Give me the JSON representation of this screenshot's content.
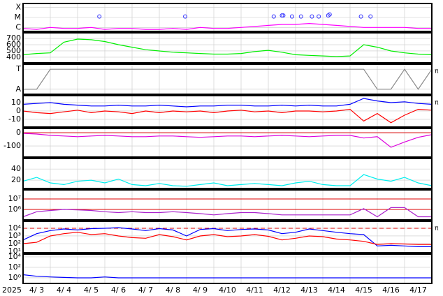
{
  "time_axis": {
    "year": "2025",
    "xlim": [
      0,
      15
    ],
    "ticks": [
      {
        "value": 0.5,
        "label": "4/ 3"
      },
      {
        "value": 1.5,
        "label": "4/ 4"
      },
      {
        "value": 2.5,
        "label": "4/ 5"
      },
      {
        "value": 3.5,
        "label": "4/ 6"
      },
      {
        "value": 4.5,
        "label": "4/ 7"
      },
      {
        "value": 5.5,
        "label": "4/ 8"
      },
      {
        "value": 6.5,
        "label": "4/ 9"
      },
      {
        "value": 7.5,
        "label": "4/10"
      },
      {
        "value": 8.5,
        "label": "4/11"
      },
      {
        "value": 9.5,
        "label": "4/12"
      },
      {
        "value": 10.5,
        "label": "4/13"
      },
      {
        "value": 11.5,
        "label": "4/14"
      },
      {
        "value": 12.5,
        "label": "4/15"
      },
      {
        "value": 13.5,
        "label": "4/16"
      },
      {
        "value": 14.5,
        "label": "4/17"
      }
    ],
    "gridlines": [
      1,
      2,
      3,
      4,
      5,
      6,
      7,
      8,
      9,
      10,
      11,
      12,
      13,
      14
    ]
  },
  "chart_data": [
    {
      "type": "line",
      "ylim": [
        -6.4,
        -3.6
      ],
      "yticks": [
        {
          "value": -4,
          "label": "X"
        },
        {
          "value": -5,
          "label": "M"
        },
        {
          "value": -6,
          "label": "C"
        }
      ],
      "x": [
        0,
        0.5,
        1,
        1.5,
        2,
        2.5,
        3,
        3.5,
        4,
        4.5,
        5,
        5.5,
        6,
        6.5,
        7,
        7.5,
        8,
        8.5,
        9,
        9.5,
        10,
        10.5,
        11,
        11.5,
        12,
        12.5,
        13,
        13.5,
        14,
        14.5,
        15
      ],
      "series": [
        {
          "color": "#ff00ff",
          "values": [
            -6.1,
            -6.2,
            -6.0,
            -6.1,
            -6.1,
            -6.0,
            -6.2,
            -6.1,
            -6.1,
            -6.2,
            -6.2,
            -6.1,
            -6.2,
            -6.0,
            -6.1,
            -6.1,
            -6.0,
            -5.9,
            -5.8,
            -5.7,
            -5.7,
            -5.6,
            -5.7,
            -5.8,
            -5.9,
            -6.0,
            -6.0,
            -6.0,
            -6.0,
            -6.1,
            -6.1
          ]
        }
      ],
      "events": {
        "color": "#3030ff",
        "x": [
          2.8,
          5.95,
          9.2,
          9.5,
          9.55,
          9.87,
          10.2,
          10.6,
          10.85,
          11.2,
          11.25,
          12.4,
          12.75
        ],
        "values": [
          -4.9,
          -4.9,
          -4.9,
          -4.8,
          -4.8,
          -4.9,
          -4.9,
          -4.9,
          -4.9,
          -4.8,
          -4.7,
          -4.9,
          -4.9
        ]
      }
    },
    {
      "type": "line",
      "ylim": [
        310,
        790
      ],
      "yticks": [
        400,
        500,
        600,
        700
      ],
      "x": [
        0,
        0.5,
        1,
        1.5,
        2,
        2.5,
        3,
        3.5,
        4,
        4.5,
        5,
        5.5,
        6,
        6.5,
        7,
        7.5,
        8,
        8.5,
        9,
        9.5,
        10,
        10.5,
        11,
        11.5,
        12,
        12.5,
        13,
        13.5,
        14,
        14.5,
        15
      ],
      "series": [
        {
          "color": "#00ee00",
          "values": [
            440,
            460,
            470,
            640,
            690,
            680,
            650,
            600,
            560,
            520,
            500,
            480,
            470,
            460,
            450,
            450,
            460,
            490,
            510,
            480,
            440,
            430,
            420,
            410,
            420,
            600,
            560,
            500,
            470,
            450,
            440
          ]
        }
      ]
    },
    {
      "type": "line",
      "ylim": [
        -1.5,
        1.5
      ],
      "yticks": [
        {
          "value": 1,
          "label": "T"
        },
        {
          "value": -1,
          "label": "A"
        }
      ],
      "side_label": "π",
      "x": [
        0,
        0.5,
        1,
        1.5,
        2,
        2.5,
        3,
        3.5,
        4,
        4.5,
        5,
        5.5,
        6,
        6.5,
        7,
        7.5,
        8,
        8.5,
        9,
        9.5,
        10,
        10.5,
        11,
        11.5,
        12,
        12.5,
        13,
        13.5,
        14,
        14.5,
        15
      ],
      "series": [
        {
          "color": "#888888",
          "values": [
            -1,
            -1,
            1,
            1,
            1,
            1,
            1,
            1,
            1,
            1,
            1,
            1,
            1,
            1,
            1,
            1,
            1,
            1,
            1,
            1,
            1,
            1,
            1,
            1,
            1,
            1,
            -1,
            -1,
            1,
            -1,
            1
          ]
        }
      ]
    },
    {
      "type": "line",
      "ylim": [
        -19.2,
        18.3
      ],
      "yticks": [
        10,
        0,
        -10
      ],
      "side_label": "π",
      "x": [
        0,
        0.5,
        1,
        1.5,
        2,
        2.5,
        3,
        3.5,
        4,
        4.5,
        5,
        5.5,
        6,
        6.5,
        7,
        7.5,
        8,
        8.5,
        9,
        9.5,
        10,
        10.5,
        11,
        11.5,
        12,
        12.5,
        13,
        13.5,
        14,
        14.5,
        15
      ],
      "series": [
        {
          "color": "#0000ff",
          "values": [
            8,
            9,
            10,
            8,
            7,
            6,
            6,
            7,
            6,
            6,
            7,
            6,
            5,
            6,
            6,
            7,
            7,
            6,
            6,
            7,
            6,
            7,
            6,
            6,
            8,
            15,
            12,
            10,
            11,
            9,
            8
          ]
        },
        {
          "color": "#ff0000",
          "values": [
            0,
            -2,
            -3,
            -1,
            1,
            -2,
            0,
            -1,
            -3,
            0,
            -2,
            0,
            -1,
            0,
            -2,
            0,
            1,
            -1,
            0,
            -2,
            0,
            0,
            -1,
            0,
            2,
            -12,
            -3,
            -14,
            -5,
            2,
            1
          ]
        }
      ]
    },
    {
      "type": "line",
      "ylim": [
        -184,
        32
      ],
      "yticks": [
        0,
        -100
      ],
      "thresholds": [
        0
      ],
      "x": [
        0,
        0.5,
        1,
        1.5,
        2,
        2.5,
        3,
        3.5,
        4,
        4.5,
        5,
        5.5,
        6,
        6.5,
        7,
        7.5,
        8,
        8.5,
        9,
        9.5,
        10,
        10.5,
        11,
        11.5,
        12,
        12.5,
        13,
        13.5,
        14,
        14.5,
        15
      ],
      "series": [
        {
          "color": "#dd00dd",
          "values": [
            -5,
            -10,
            -20,
            -25,
            -30,
            -25,
            -20,
            -25,
            -30,
            -30,
            -25,
            -25,
            -30,
            -35,
            -30,
            -25,
            -25,
            -30,
            -25,
            -20,
            -25,
            -30,
            -25,
            -20,
            -20,
            -40,
            -30,
            -110,
            -70,
            -35,
            -15
          ]
        }
      ]
    },
    {
      "type": "line",
      "ylim": [
        5,
        59
      ],
      "yticks": [
        40,
        20
      ],
      "x": [
        0,
        0.5,
        1,
        1.5,
        2,
        2.5,
        3,
        3.5,
        4,
        4.5,
        5,
        5.5,
        6,
        6.5,
        7,
        7.5,
        8,
        8.5,
        9,
        9.5,
        10,
        10.5,
        11,
        11.5,
        12,
        12.5,
        13,
        13.5,
        14,
        14.5,
        15
      ],
      "series": [
        {
          "color": "#00eeee",
          "values": [
            18,
            25,
            15,
            12,
            18,
            20,
            15,
            22,
            12,
            10,
            14,
            10,
            9,
            12,
            15,
            10,
            12,
            14,
            12,
            10,
            15,
            18,
            12,
            10,
            10,
            30,
            22,
            18,
            25,
            15,
            10
          ]
        }
      ]
    },
    {
      "type": "line",
      "log_scale": true,
      "ylim": [
        100000,
        74000000
      ],
      "yticks": [
        {
          "value": 10000000,
          "label": "10⁷"
        },
        {
          "value": 1000000,
          "label": "10⁶"
        }
      ],
      "thresholds": [
        10000000,
        1000000
      ],
      "x": [
        0,
        0.5,
        1,
        1.5,
        2,
        2.5,
        3,
        3.5,
        4,
        4.5,
        5,
        5.5,
        6,
        6.5,
        7,
        7.5,
        8,
        8.5,
        9,
        9.5,
        10,
        10.5,
        11,
        11.5,
        12,
        12.5,
        13,
        13.5,
        14,
        14.5,
        15
      ],
      "series": [
        {
          "color": "#aa22cc",
          "values": [
            200000,
            600000,
            800000,
            1000000,
            900000,
            800000,
            600000,
            500000,
            600000,
            500000,
            500000,
            600000,
            500000,
            400000,
            300000,
            400000,
            500000,
            500000,
            400000,
            300000,
            300000,
            300000,
            300000,
            300000,
            300000,
            1200000,
            200000,
            1500000,
            1500000,
            200000,
            200000
          ]
        }
      ]
    },
    {
      "type": "line",
      "log_scale": true,
      "ylim": [
        6.6,
        80000
      ],
      "yticks": [
        {
          "value": 10000,
          "label": "10⁴"
        },
        {
          "value": 1000,
          "label": "10³"
        },
        {
          "value": 100,
          "label": "10²"
        },
        {
          "value": 10,
          "label": "10¹"
        }
      ],
      "dashed_thresholds": [
        10000
      ],
      "side_label": "π",
      "x": [
        0,
        0.5,
        1,
        1.5,
        2,
        2.5,
        3,
        3.5,
        4,
        4.5,
        5,
        5.5,
        6,
        6.5,
        7,
        7.5,
        8,
        8.5,
        9,
        9.5,
        10,
        10.5,
        11,
        11.5,
        12,
        12.5,
        13,
        13.5,
        14,
        14.5,
        15
      ],
      "series": [
        {
          "color": "#0000ff",
          "values": [
            300,
            2000,
            5000,
            8000,
            6000,
            9000,
            10000,
            12000,
            8000,
            5000,
            9000,
            6000,
            1000,
            7000,
            9000,
            5000,
            7000,
            8000,
            6000,
            2000,
            3000,
            8000,
            5000,
            3000,
            2000,
            1500,
            50,
            60,
            50,
            40,
            40
          ]
        },
        {
          "color": "#ff0000",
          "values": [
            100,
            150,
            1000,
            2000,
            3000,
            1500,
            2000,
            1000,
            600,
            500,
            1500,
            800,
            300,
            1000,
            1500,
            800,
            1000,
            1500,
            900,
            300,
            500,
            1000,
            800,
            400,
            300,
            200,
            80,
            100,
            90,
            80,
            80
          ]
        }
      ]
    },
    {
      "type": "line",
      "log_scale": true,
      "ylim": [
        0.085,
        34000
      ],
      "yticks": [
        {
          "value": 10000,
          "label": "10⁴"
        },
        {
          "value": 100,
          "label": "10²"
        },
        {
          "value": 1,
          "label": "10⁰"
        }
      ],
      "x": [
        0,
        0.5,
        1,
        1.5,
        2,
        2.5,
        3,
        3.5,
        4,
        4.5,
        5,
        5.5,
        6,
        6.5,
        7,
        7.5,
        8,
        8.5,
        9,
        9.5,
        10,
        10.5,
        11,
        11.5,
        12,
        12.5,
        13,
        13.5,
        14,
        14.5,
        15
      ],
      "series": [
        {
          "color": "#0000ff",
          "values": [
            4,
            2,
            1.5,
            1.2,
            1,
            1,
            1.5,
            1,
            1,
            1,
            1,
            1,
            1,
            1,
            1,
            1,
            1,
            1,
            1,
            1,
            1,
            1,
            1,
            1,
            1,
            1,
            1,
            1,
            1,
            1,
            1
          ]
        }
      ]
    }
  ]
}
